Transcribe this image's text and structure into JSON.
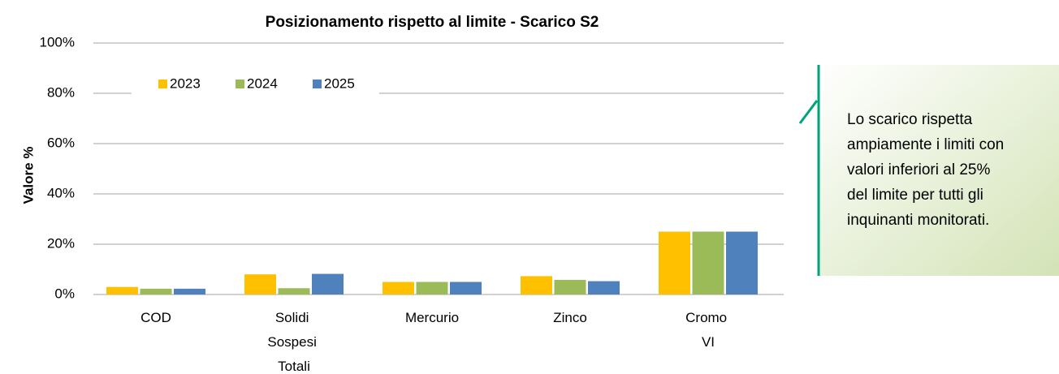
{
  "chart_data": {
    "type": "bar",
    "title": "Posizionamento rispetto al limite - Scarico S2",
    "y_label": "Valore %",
    "categories": [
      "COD",
      "Solidi Sospesi Totali",
      "Mercurio",
      "Zinco",
      "Cromo VI"
    ],
    "series": [
      {
        "name": "2023",
        "color": "#ffc000",
        "values": [
          3,
          8,
          5,
          7.3,
          25
        ]
      },
      {
        "name": "2024",
        "color": "#9bbb59",
        "values": [
          2.3,
          2.5,
          5,
          5.8,
          25
        ]
      },
      {
        "name": "2025",
        "color": "#4f81bd",
        "values": [
          2.3,
          8.2,
          5,
          5.3,
          25
        ]
      }
    ],
    "ylim": [
      0,
      100
    ],
    "yticks": [
      {
        "value": 0,
        "label": "0%"
      },
      {
        "value": 20,
        "label": "20%"
      },
      {
        "value": 40,
        "label": "40%"
      },
      {
        "value": 60,
        "label": "60%"
      },
      {
        "value": 80,
        "label": "80%"
      },
      {
        "value": 100,
        "label": "100%"
      }
    ],
    "grid": true,
    "legend": "top",
    "annotation": [
      "Lo scarico rispetta",
      "ampiamente i limiti con",
      "valori inferiori al 25%",
      "del limite per tutti gli",
      "inquinanti monitorati."
    ]
  }
}
